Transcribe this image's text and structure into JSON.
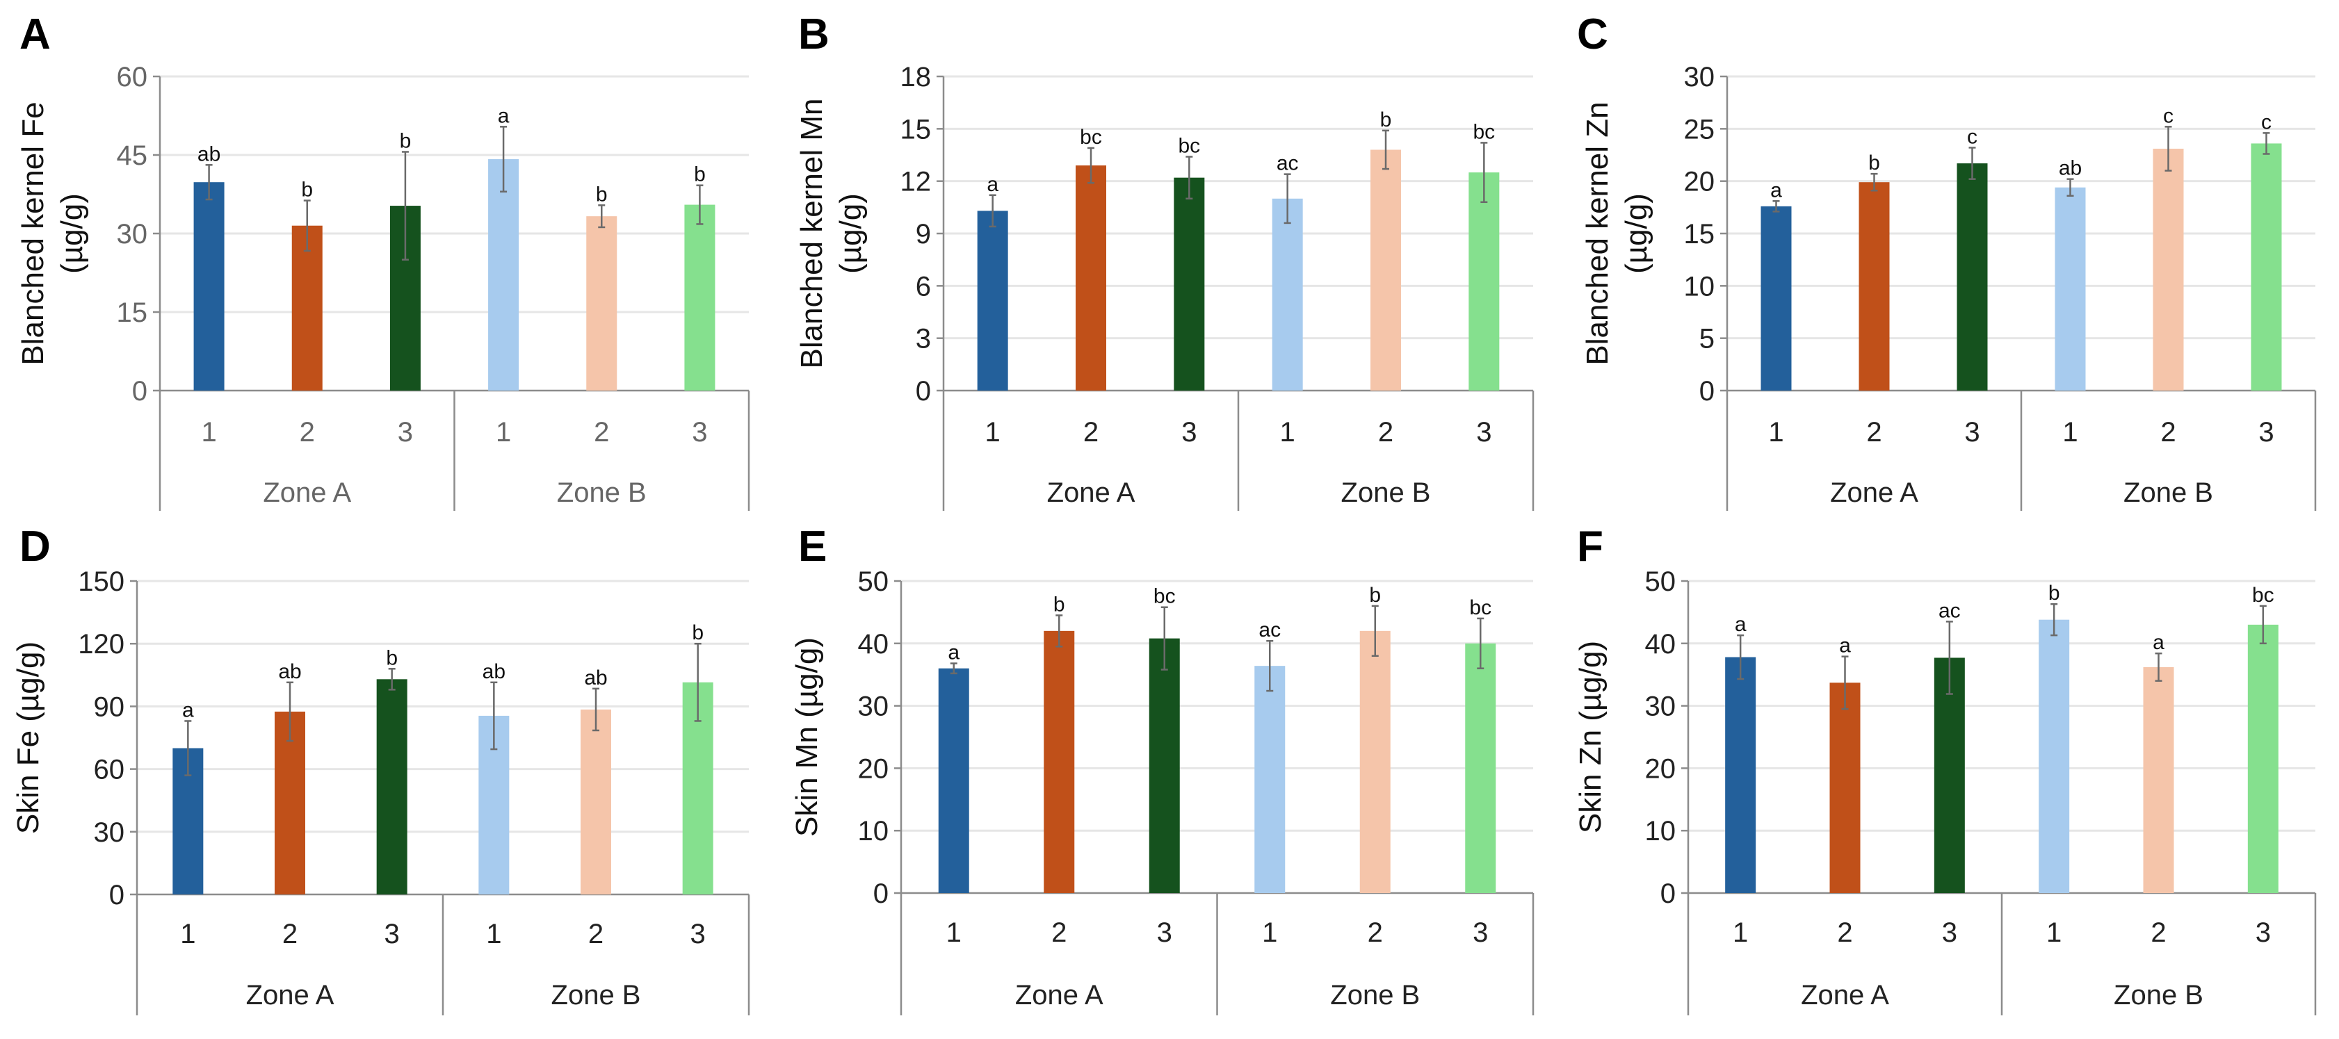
{
  "chart_data": [
    {
      "type": "bar",
      "panel": "A",
      "ylabel": [
        "Blanched kernel Fe",
        "(µg/g)"
      ],
      "ylim": [
        0,
        60
      ],
      "yticks": [
        0,
        15,
        30,
        45,
        60
      ],
      "grey_ticks": true,
      "categories": [
        "1",
        "2",
        "3",
        "1",
        "2",
        "3"
      ],
      "groups": [
        "Zone A",
        "Zone B"
      ],
      "values": [
        39.8,
        31.5,
        35.3,
        44.2,
        33.3,
        35.5
      ],
      "errors": [
        3.3,
        4.8,
        10.3,
        6.2,
        2.1,
        3.7
      ],
      "letters": [
        "ab",
        "b",
        "b",
        "a",
        "b",
        "b"
      ]
    },
    {
      "type": "bar",
      "panel": "B",
      "ylabel": [
        "Blanched kernel Mn",
        "(µg/g)"
      ],
      "ylim": [
        0,
        18
      ],
      "yticks": [
        0,
        3,
        6,
        9,
        12,
        15,
        18
      ],
      "categories": [
        "1",
        "2",
        "3",
        "1",
        "2",
        "3"
      ],
      "groups": [
        "Zone A",
        "Zone B"
      ],
      "values": [
        10.3,
        12.9,
        12.2,
        11.0,
        13.8,
        12.5
      ],
      "errors": [
        0.9,
        1.0,
        1.2,
        1.4,
        1.1,
        1.7
      ],
      "letters": [
        "a",
        "bc",
        "bc",
        "ac",
        "b",
        "bc"
      ]
    },
    {
      "type": "bar",
      "panel": "C",
      "ylabel": [
        "Blanched kernel Zn",
        "(µg/g)"
      ],
      "ylim": [
        0,
        30
      ],
      "yticks": [
        0,
        5,
        10,
        15,
        20,
        25,
        30
      ],
      "categories": [
        "1",
        "2",
        "3",
        "1",
        "2",
        "3"
      ],
      "groups": [
        "Zone A",
        "Zone B"
      ],
      "values": [
        17.6,
        19.9,
        21.7,
        19.4,
        23.1,
        23.6
      ],
      "errors": [
        0.5,
        0.8,
        1.5,
        0.8,
        2.1,
        1.0
      ],
      "letters": [
        "a",
        "b",
        "c",
        "ab",
        "c",
        "c"
      ]
    },
    {
      "type": "bar",
      "panel": "D",
      "ylabel": [
        "Skin Fe (µg/g)"
      ],
      "ylim": [
        0,
        150
      ],
      "yticks": [
        0,
        30,
        60,
        90,
        120,
        150
      ],
      "categories": [
        "1",
        "2",
        "3",
        "1",
        "2",
        "3"
      ],
      "groups": [
        "Zone A",
        "Zone B"
      ],
      "values": [
        70,
        87.5,
        103,
        85.5,
        88.5,
        101.5
      ],
      "errors": [
        13,
        14,
        5,
        16,
        10,
        18.5
      ],
      "letters": [
        "a",
        "ab",
        "b",
        "ab",
        "ab",
        "b"
      ]
    },
    {
      "type": "bar",
      "panel": "E",
      "ylabel": [
        "Skin Mn (µg/g)"
      ],
      "ylim": [
        0,
        50
      ],
      "yticks": [
        0,
        10,
        20,
        30,
        40,
        50
      ],
      "categories": [
        "1",
        "2",
        "3",
        "1",
        "2",
        "3"
      ],
      "groups": [
        "Zone A",
        "Zone B"
      ],
      "values": [
        36,
        42,
        40.8,
        36.4,
        42,
        40
      ],
      "errors": [
        0.8,
        2.5,
        5,
        4,
        4,
        4
      ],
      "letters": [
        "a",
        "b",
        "bc",
        "ac",
        "b",
        "bc"
      ]
    },
    {
      "type": "bar",
      "panel": "F",
      "ylabel": [
        "Skin Zn (µg/g)"
      ],
      "ylim": [
        0,
        50
      ],
      "yticks": [
        0,
        10,
        20,
        30,
        40,
        50
      ],
      "categories": [
        "1",
        "2",
        "3",
        "1",
        "2",
        "3"
      ],
      "groups": [
        "Zone A",
        "Zone B"
      ],
      "values": [
        37.8,
        33.7,
        37.7,
        43.8,
        36.2,
        43
      ],
      "errors": [
        3.5,
        4.2,
        5.8,
        2.5,
        2.2,
        3
      ],
      "letters": [
        "a",
        "a",
        "ac",
        "b",
        "a",
        "bc"
      ]
    }
  ],
  "colors": [
    "#23609b",
    "#c05019",
    "#15521e",
    "#a7cbee",
    "#f5c5aa",
    "#85e08e"
  ]
}
